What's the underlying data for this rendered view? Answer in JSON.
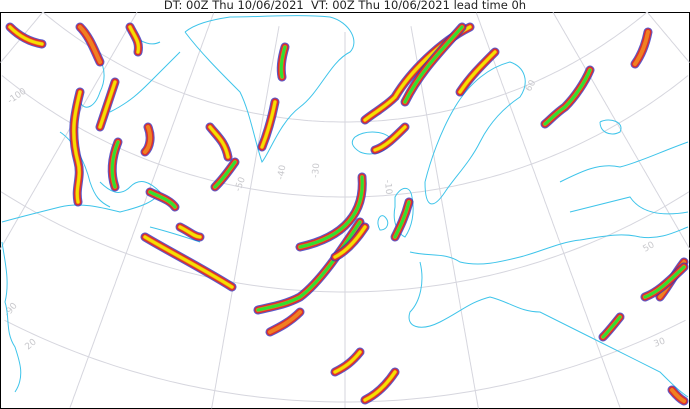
{
  "title": "DT: 00Z Thu 10/06/2021  VT: 00Z Thu 10/06/2021 lead time 0h",
  "grid_labels": [
    "-100",
    "-90",
    "-50",
    "-40",
    "-30",
    "-10",
    "60",
    "50",
    "30",
    "20"
  ],
  "colors": {
    "coastline": "#3ec4ea",
    "grid": "#d6d6de",
    "jet_outer": "#d93030",
    "jet_mid": "#f08020",
    "jet_core": "#f5e000",
    "jet_green": "#30e030",
    "jet_blue": "#3030c0"
  }
}
